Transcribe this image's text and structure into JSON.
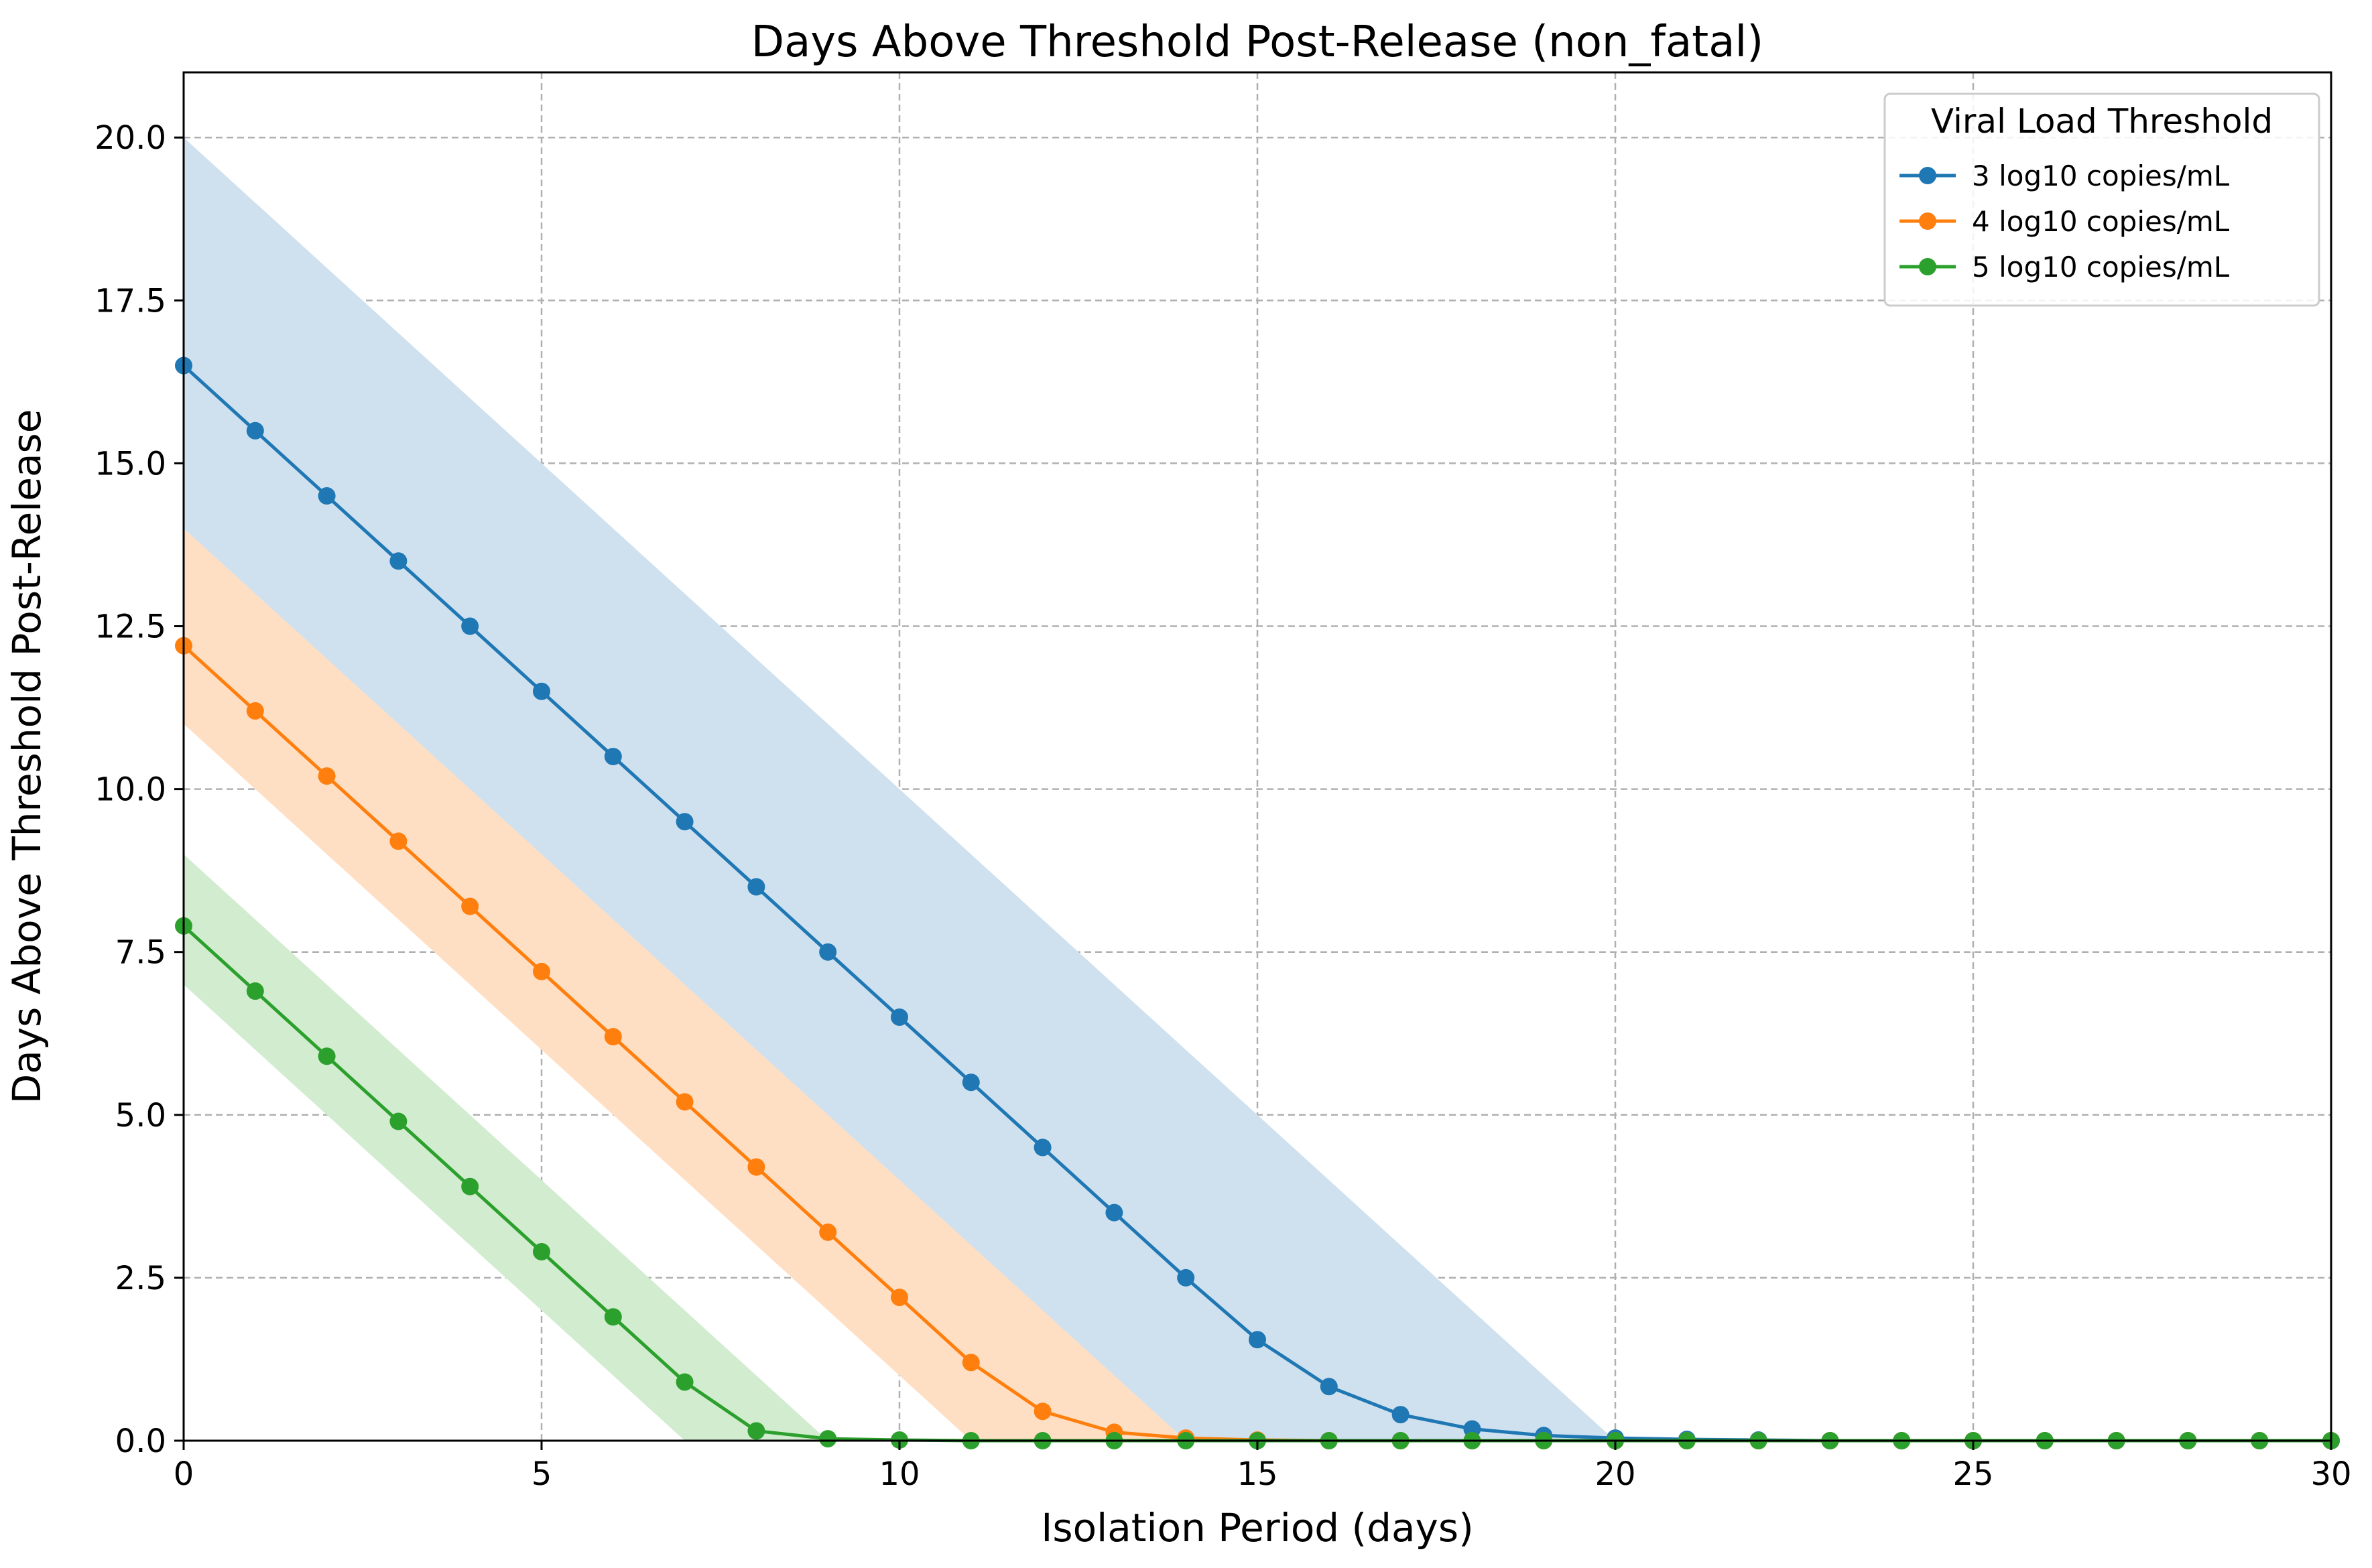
{
  "chart_data": {
    "type": "line",
    "title": "Days Above Threshold Post-Release (non_fatal)",
    "xlabel": "Isolation Period (days)",
    "ylabel": "Days Above Threshold Post-Release",
    "xlim": [
      0,
      30
    ],
    "ylim": [
      0,
      21
    ],
    "xticks": [
      0,
      5,
      10,
      15,
      20,
      25,
      30
    ],
    "xtick_labels": [
      "0",
      "5",
      "10",
      "15",
      "20",
      "25",
      "30"
    ],
    "yticks": [
      0,
      2.5,
      5,
      7.5,
      10,
      12.5,
      15,
      17.5,
      20
    ],
    "ytick_labels": [
      "0.0",
      "2.5",
      "5.0",
      "7.5",
      "10.0",
      "12.5",
      "15.0",
      "17.5",
      "20.0"
    ],
    "grid": true,
    "legend": {
      "title": "Viral Load Threshold",
      "placement": "top-right"
    },
    "x": [
      0,
      1,
      2,
      3,
      4,
      5,
      6,
      7,
      8,
      9,
      10,
      11,
      12,
      13,
      14,
      15,
      16,
      17,
      18,
      19,
      20,
      21,
      22,
      23,
      24,
      25,
      26,
      27,
      28,
      29,
      30
    ],
    "series": [
      {
        "name": "3 log10 copies/mL",
        "color": "#1f77b4",
        "band_color": "#cfe1ef",
        "values": [
          16.5,
          15.5,
          14.5,
          13.5,
          12.5,
          11.5,
          10.5,
          9.5,
          8.5,
          7.5,
          6.5,
          5.5,
          4.5,
          3.5,
          2.5,
          1.55,
          0.83,
          0.4,
          0.18,
          0.08,
          0.04,
          0.02,
          0.01,
          0,
          0,
          0,
          0,
          0,
          0,
          0,
          0
        ],
        "band_lower": [
          13,
          12,
          11,
          10,
          9,
          8,
          7,
          6,
          5,
          4,
          3,
          2,
          1,
          0,
          0,
          0,
          0,
          0,
          0,
          0,
          0,
          0,
          0,
          0,
          0,
          0,
          0,
          0,
          0,
          0,
          0
        ],
        "band_upper": [
          20,
          19,
          18,
          17,
          16,
          15,
          14,
          13,
          12,
          11,
          10,
          9,
          8,
          7,
          6,
          5,
          4,
          3,
          2,
          1,
          0,
          0,
          0,
          0,
          0,
          0,
          0,
          0,
          0,
          0,
          0
        ]
      },
      {
        "name": "4 log10 copies/mL",
        "color": "#ff7f0e",
        "band_color": "#ffdfc4",
        "values": [
          12.2,
          11.2,
          10.2,
          9.2,
          8.2,
          7.2,
          6.2,
          5.2,
          4.2,
          3.2,
          2.2,
          1.2,
          0.45,
          0.13,
          0.04,
          0.01,
          0,
          0,
          0,
          0,
          0,
          0,
          0,
          0,
          0,
          0,
          0,
          0,
          0,
          0,
          0
        ],
        "band_lower": [
          11,
          10,
          9,
          8,
          7,
          6,
          5,
          4,
          3,
          2,
          1,
          0,
          0,
          0,
          0,
          0,
          0,
          0,
          0,
          0,
          0,
          0,
          0,
          0,
          0,
          0,
          0,
          0,
          0,
          0,
          0
        ],
        "band_upper": [
          14,
          13,
          12,
          11,
          10,
          9,
          8,
          7,
          6,
          5,
          4,
          3,
          2,
          1,
          0,
          0,
          0,
          0,
          0,
          0,
          0,
          0,
          0,
          0,
          0,
          0,
          0,
          0,
          0,
          0,
          0
        ]
      },
      {
        "name": "5 log10 copies/mL",
        "color": "#2ca02c",
        "band_color": "#d2ecd0",
        "values": [
          7.9,
          6.9,
          5.9,
          4.9,
          3.9,
          2.9,
          1.9,
          0.9,
          0.15,
          0.03,
          0.01,
          0,
          0,
          0,
          0,
          0,
          0,
          0,
          0,
          0,
          0,
          0,
          0,
          0,
          0,
          0,
          0,
          0,
          0,
          0,
          0
        ],
        "band_lower": [
          7,
          6,
          5,
          4,
          3,
          2,
          1,
          0,
          0,
          0,
          0,
          0,
          0,
          0,
          0,
          0,
          0,
          0,
          0,
          0,
          0,
          0,
          0,
          0,
          0,
          0,
          0,
          0,
          0,
          0,
          0
        ],
        "band_upper": [
          9,
          8,
          7,
          6,
          5,
          4,
          3,
          2,
          1,
          0,
          0,
          0,
          0,
          0,
          0,
          0,
          0,
          0,
          0,
          0,
          0,
          0,
          0,
          0,
          0,
          0,
          0,
          0,
          0,
          0,
          0
        ]
      }
    ]
  }
}
